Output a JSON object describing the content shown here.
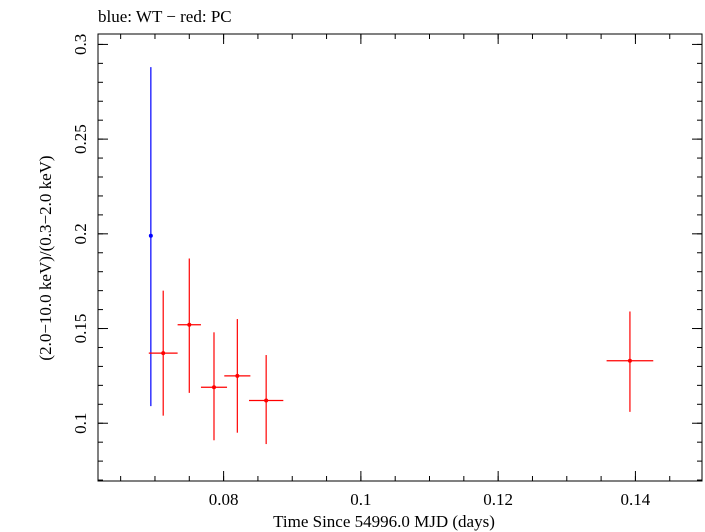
{
  "chart_data": {
    "type": "scatter",
    "title": "blue: WT − red: PC",
    "xlabel": "Time Since 54996.0 MJD (days)",
    "ylabel": "(2.0−10.0 keV)/(0.3−2.0 keV)",
    "xlim": [
      0.0617,
      0.1497
    ],
    "ylim": [
      0.0695,
      0.3055
    ],
    "xticks": [
      {
        "value": 0.08,
        "label": "0.08"
      },
      {
        "value": 0.1,
        "label": "0.1"
      },
      {
        "value": 0.12,
        "label": "0.12"
      },
      {
        "value": 0.14,
        "label": "0.14"
      }
    ],
    "yticks": [
      {
        "value": 0.1,
        "label": "0.1"
      },
      {
        "value": 0.15,
        "label": "0.15"
      },
      {
        "value": 0.2,
        "label": "0.2"
      },
      {
        "value": 0.25,
        "label": "0.25"
      },
      {
        "value": 0.3,
        "label": "0.3"
      }
    ],
    "grid": false,
    "series": [
      {
        "name": "WT",
        "color": "#0000ff",
        "points": [
          {
            "x": 0.0694,
            "y": 0.199,
            "xerr": 0.0,
            "ylo": 0.109,
            "yhi": 0.288
          }
        ]
      },
      {
        "name": "PC",
        "color": "#ff0000",
        "points": [
          {
            "x": 0.0712,
            "y": 0.137,
            "xerr": 0.0021,
            "ylo": 0.104,
            "yhi": 0.17
          },
          {
            "x": 0.075,
            "y": 0.152,
            "xerr": 0.0017,
            "ylo": 0.116,
            "yhi": 0.187
          },
          {
            "x": 0.0786,
            "y": 0.119,
            "xerr": 0.0019,
            "ylo": 0.091,
            "yhi": 0.148
          },
          {
            "x": 0.082,
            "y": 0.125,
            "xerr": 0.0019,
            "ylo": 0.095,
            "yhi": 0.155
          },
          {
            "x": 0.0862,
            "y": 0.112,
            "xerr": 0.0025,
            "ylo": 0.089,
            "yhi": 0.136
          },
          {
            "x": 0.1392,
            "y": 0.133,
            "xerr": 0.0034,
            "ylo": 0.106,
            "yhi": 0.159
          }
        ]
      }
    ]
  }
}
